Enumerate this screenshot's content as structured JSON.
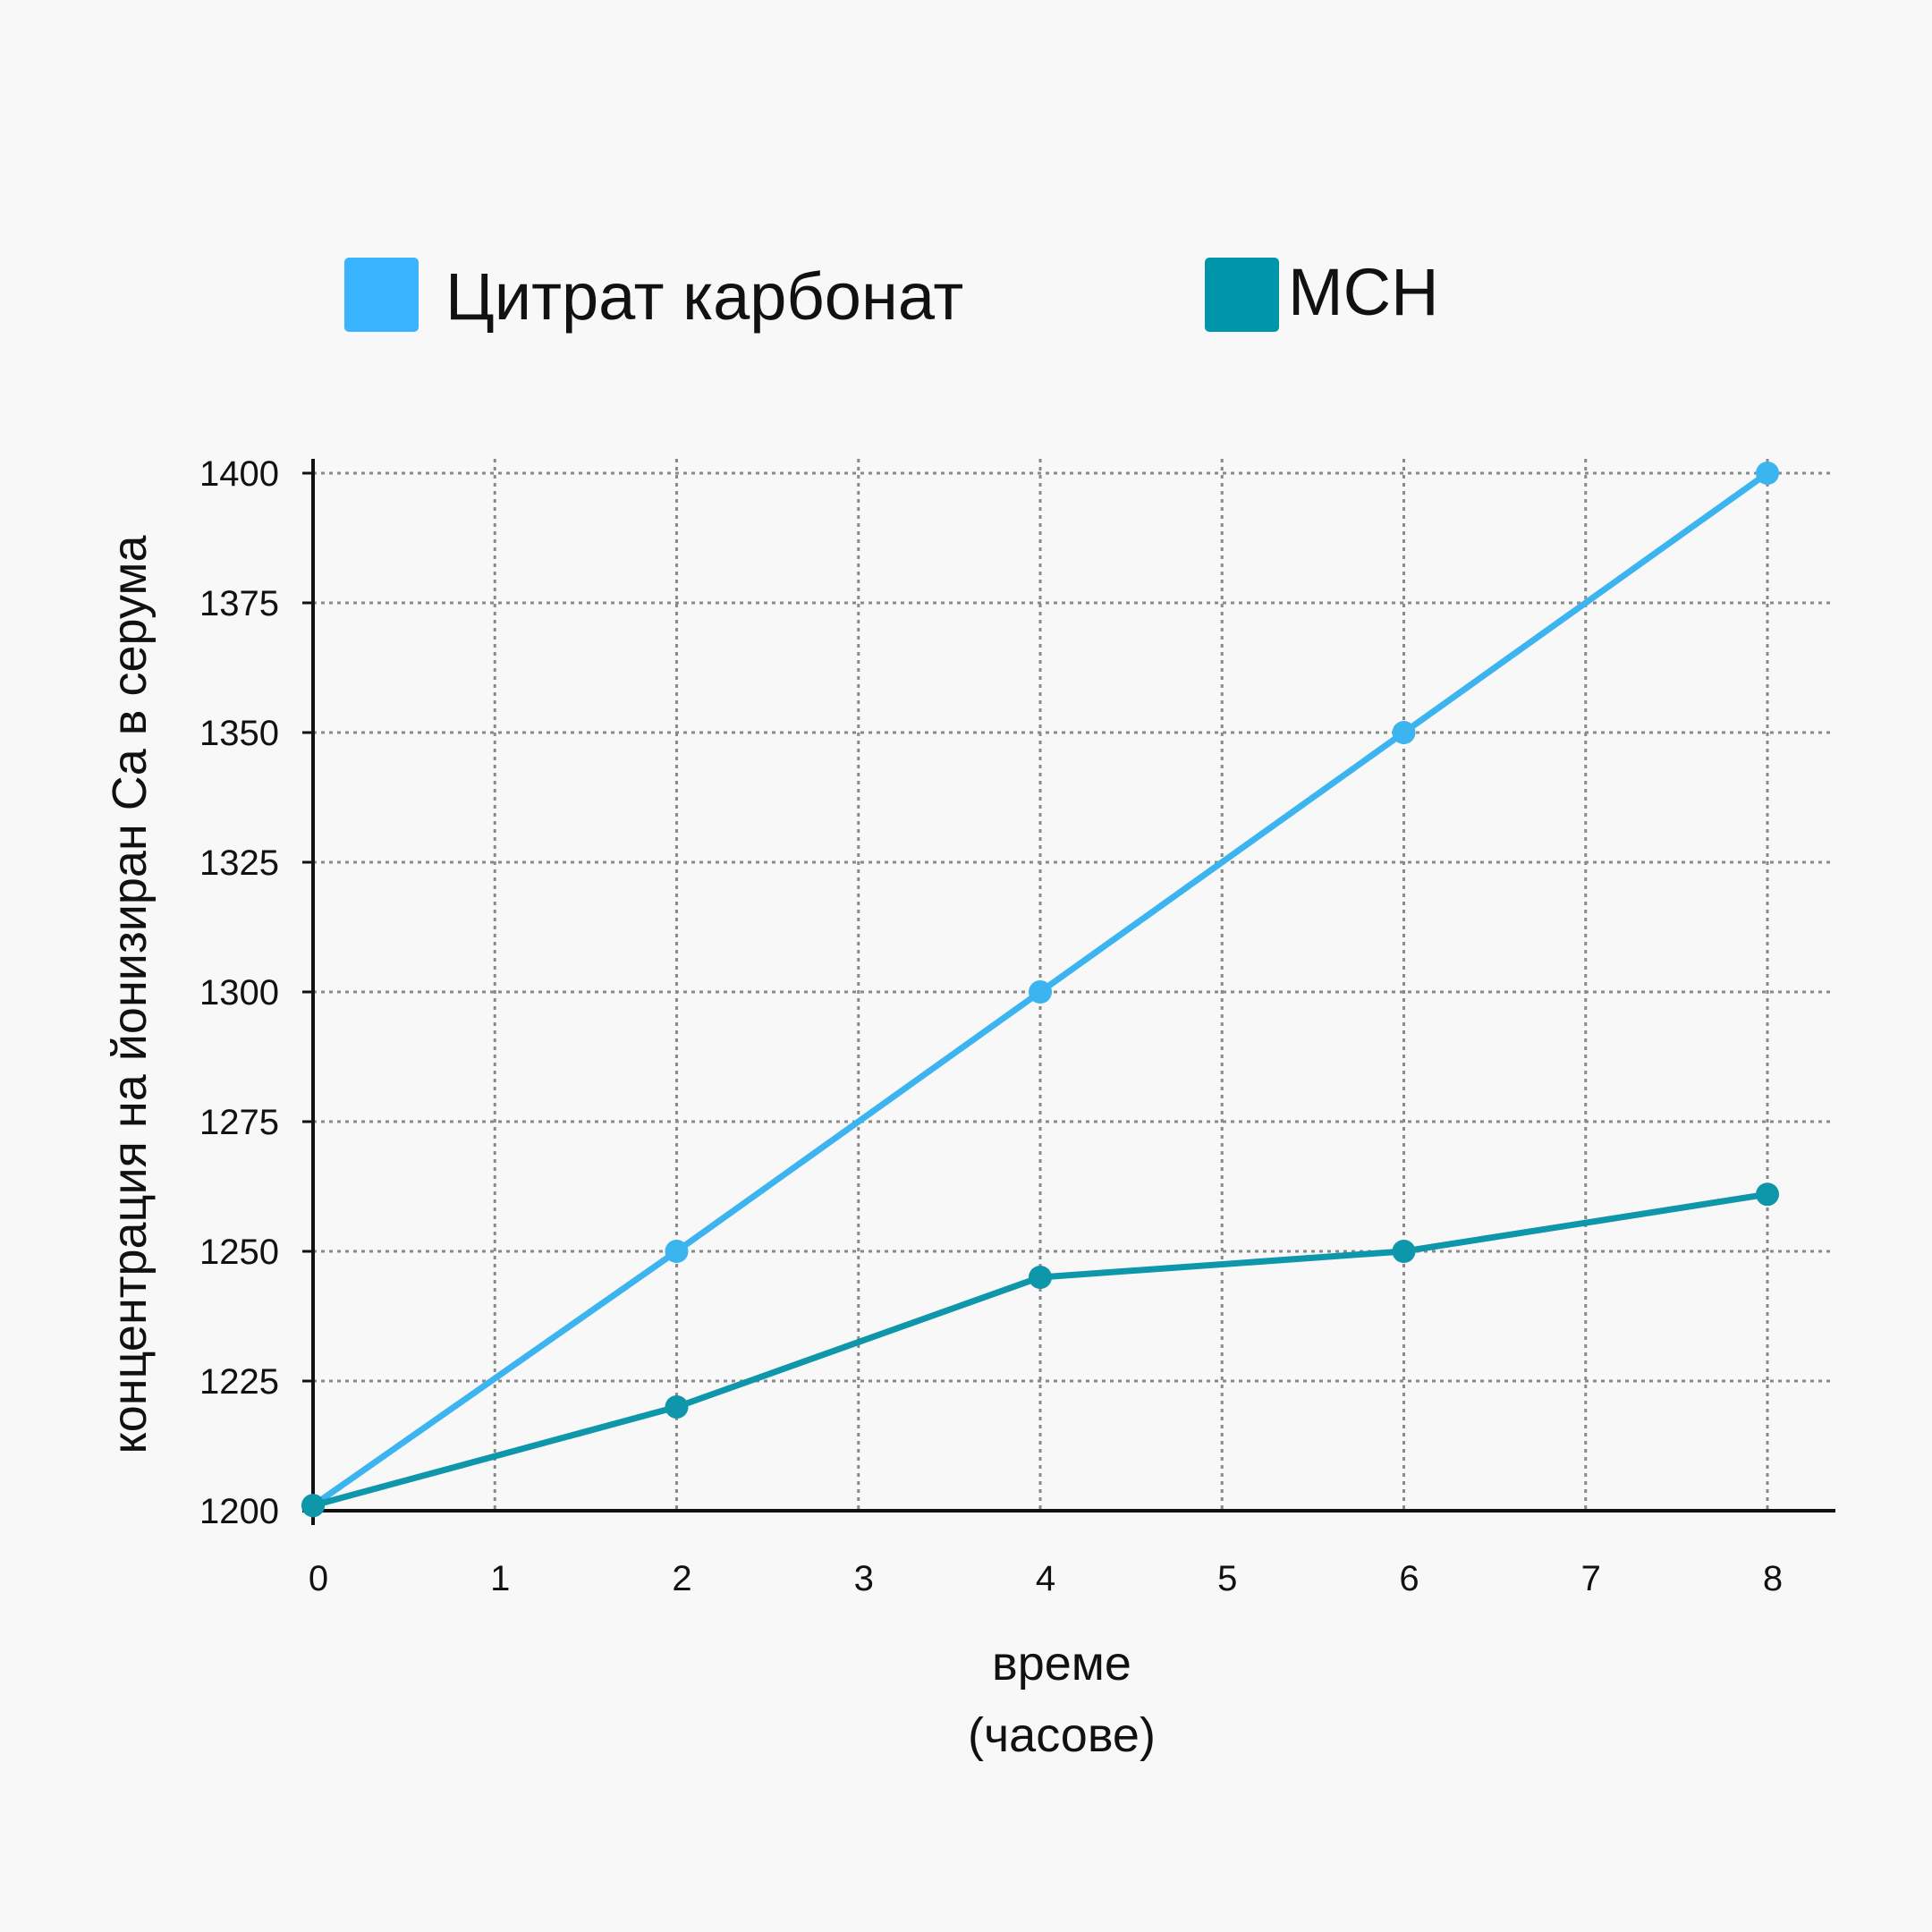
{
  "chart_data": {
    "type": "line",
    "title": "",
    "xlabel": "време",
    "xlabel_line2": "(часове)",
    "ylabel": "концентрация на йонизиран Ca в серума",
    "x_ticks": [
      0,
      1,
      2,
      3,
      4,
      5,
      6,
      7,
      8
    ],
    "y_ticks": [
      1200,
      1225,
      1250,
      1275,
      1300,
      1325,
      1350,
      1375,
      1400
    ],
    "xlim": [
      0,
      8
    ],
    "ylim": [
      1200,
      1400
    ],
    "grid": true,
    "grid_style": "dotted",
    "legend_position": "top",
    "series": [
      {
        "name": "Цитрат карбонат",
        "color": "#3bb4f0",
        "x": [
          0,
          2,
          4,
          6,
          8
        ],
        "y": [
          1201,
          1250,
          1300,
          1350,
          1400
        ]
      },
      {
        "name": "MCH",
        "color": "#0e96aa",
        "x": [
          0,
          2,
          4,
          6,
          8
        ],
        "y": [
          1201,
          1220,
          1245,
          1250,
          1261
        ]
      }
    ]
  },
  "colors": {
    "background": "#f8f8f8",
    "grid": "#8a8a8a",
    "axis": "#111111",
    "legend_swatch_1": "#3bb4ff",
    "legend_swatch_2": "#0096aa"
  }
}
